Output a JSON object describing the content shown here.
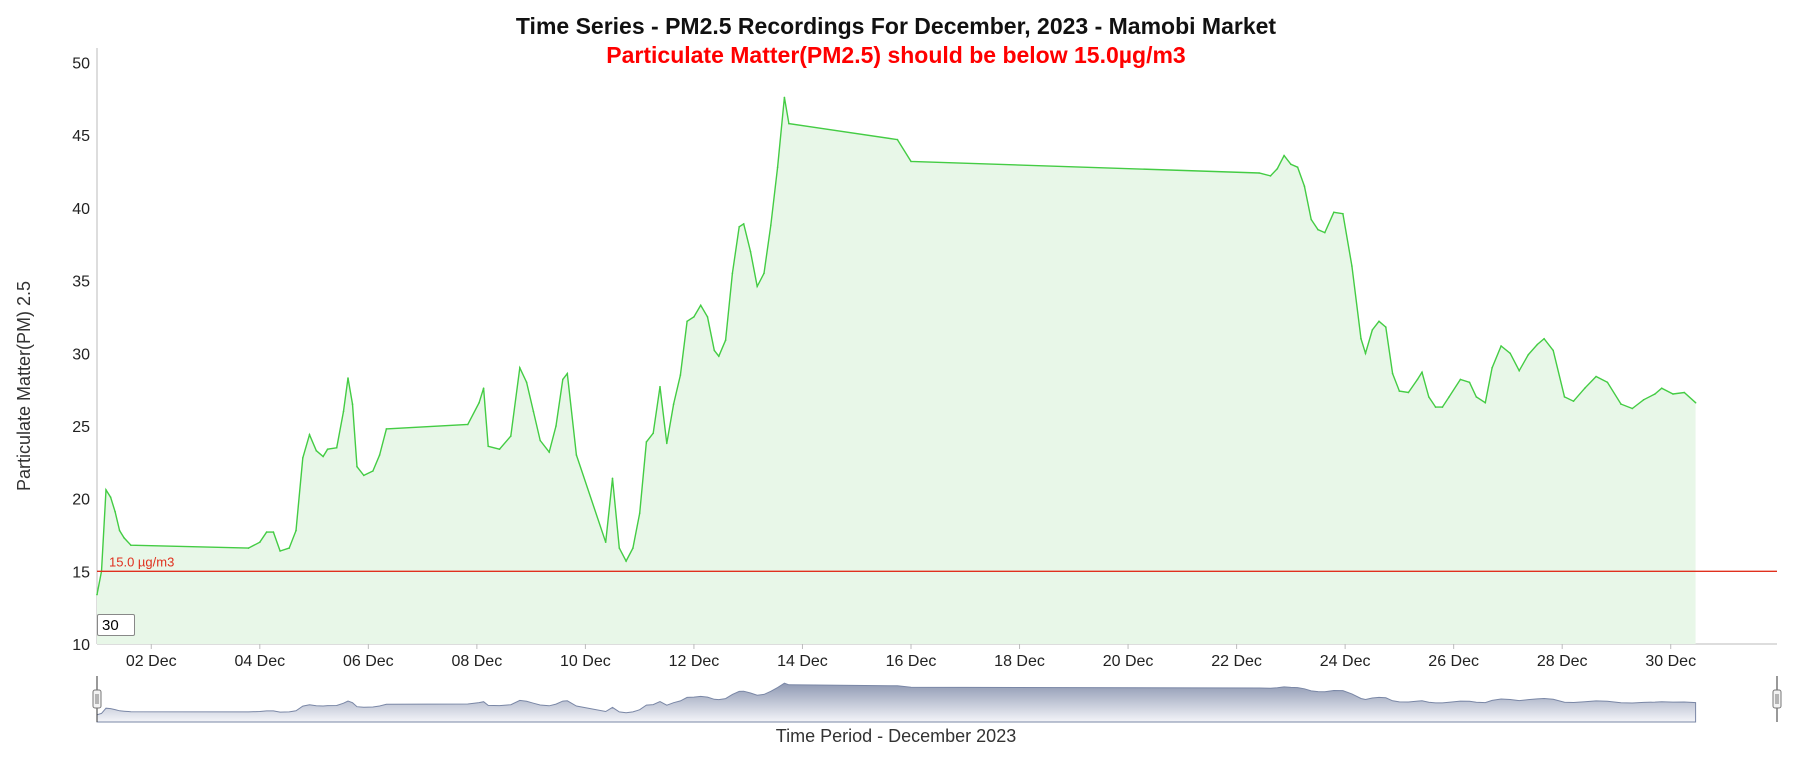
{
  "chart_data": {
    "type": "area",
    "title": "Time Series - PM2.5 Recordings For December, 2023 - Mamobi Market",
    "subtitle": "Particulate Matter(PM2.5) should be below 15.0µg/m3",
    "xlabel": "Time Period - December 2023",
    "ylabel": "Particulate Matter(PM) 2.5",
    "ylim": [
      10,
      51
    ],
    "yticks": [
      "10",
      "15",
      "20",
      "25",
      "30",
      "35",
      "40",
      "45",
      "50"
    ],
    "xlim": [
      "2023-12-01",
      "2023-12-31T23:00"
    ],
    "xticks": [
      {
        "date": "2023-12-02",
        "label": "02 Dec"
      },
      {
        "date": "2023-12-04",
        "label": "04 Dec"
      },
      {
        "date": "2023-12-06",
        "label": "06 Dec"
      },
      {
        "date": "2023-12-08",
        "label": "08 Dec"
      },
      {
        "date": "2023-12-10",
        "label": "10 Dec"
      },
      {
        "date": "2023-12-12",
        "label": "12 Dec"
      },
      {
        "date": "2023-12-14",
        "label": "14 Dec"
      },
      {
        "date": "2023-12-16",
        "label": "16 Dec"
      },
      {
        "date": "2023-12-18",
        "label": "18 Dec"
      },
      {
        "date": "2023-12-20",
        "label": "20 Dec"
      },
      {
        "date": "2023-12-22",
        "label": "22 Dec"
      },
      {
        "date": "2023-12-24",
        "label": "24 Dec"
      },
      {
        "date": "2023-12-26",
        "label": "26 Dec"
      },
      {
        "date": "2023-12-28",
        "label": "28 Dec"
      },
      {
        "date": "2023-12-30",
        "label": "30 Dec"
      }
    ],
    "grid": false,
    "series": [
      {
        "color": "#44cc44",
        "fill": "#e8f7e8",
        "points": [
          [
            "2023-12-01T00:00",
            13.4
          ],
          [
            "2023-12-01T02:00",
            15.0
          ],
          [
            "2023-12-01T04:00",
            20.6
          ],
          [
            "2023-12-01T06:00",
            20.1
          ],
          [
            "2023-12-01T08:00",
            19.1
          ],
          [
            "2023-12-01T10:00",
            17.8
          ],
          [
            "2023-12-01T12:00",
            17.3
          ],
          [
            "2023-12-01T15:00",
            16.8
          ],
          [
            "2023-12-03T19:00",
            16.6
          ],
          [
            "2023-12-04T00:00",
            17.0
          ],
          [
            "2023-12-04T03:00",
            17.7
          ],
          [
            "2023-12-04T06:00",
            17.7
          ],
          [
            "2023-12-04T09:00",
            16.4
          ],
          [
            "2023-12-04T13:00",
            16.6
          ],
          [
            "2023-12-04T16:00",
            17.8
          ],
          [
            "2023-12-04T19:00",
            22.8
          ],
          [
            "2023-12-04T22:00",
            24.4
          ],
          [
            "2023-12-05T01:00",
            23.3
          ],
          [
            "2023-12-05T04:00",
            22.9
          ],
          [
            "2023-12-05T06:00",
            23.4
          ],
          [
            "2023-12-05T10:00",
            23.5
          ],
          [
            "2023-12-05T13:00",
            26.0
          ],
          [
            "2023-12-05T15:00",
            28.3
          ],
          [
            "2023-12-05T17:00",
            26.5
          ],
          [
            "2023-12-05T19:00",
            22.2
          ],
          [
            "2023-12-05T22:00",
            21.6
          ],
          [
            "2023-12-06T02:00",
            21.9
          ],
          [
            "2023-12-06T05:00",
            23.0
          ],
          [
            "2023-12-06T08:00",
            24.8
          ],
          [
            "2023-12-07T20:00",
            25.1
          ],
          [
            "2023-12-08T01:00",
            26.6
          ],
          [
            "2023-12-08T03:00",
            27.6
          ],
          [
            "2023-12-08T05:00",
            23.6
          ],
          [
            "2023-12-08T10:00",
            23.4
          ],
          [
            "2023-12-08T15:00",
            24.3
          ],
          [
            "2023-12-08T19:00",
            29.0
          ],
          [
            "2023-12-08T22:00",
            28.0
          ],
          [
            "2023-12-09T01:00",
            26.0
          ],
          [
            "2023-12-09T04:00",
            24.0
          ],
          [
            "2023-12-09T08:00",
            23.2
          ],
          [
            "2023-12-09T11:00",
            25.0
          ],
          [
            "2023-12-09T14:00",
            28.2
          ],
          [
            "2023-12-09T16:00",
            28.6
          ],
          [
            "2023-12-09T20:00",
            23.0
          ],
          [
            "2023-12-10T09:00",
            17.0
          ],
          [
            "2023-12-10T12:00",
            21.4
          ],
          [
            "2023-12-10T15:00",
            16.6
          ],
          [
            "2023-12-10T18:00",
            15.7
          ],
          [
            "2023-12-10T21:00",
            16.6
          ],
          [
            "2023-12-11T00:00",
            19.0
          ],
          [
            "2023-12-11T03:00",
            23.9
          ],
          [
            "2023-12-11T06:00",
            24.5
          ],
          [
            "2023-12-11T09:00",
            27.7
          ],
          [
            "2023-12-11T12:00",
            23.8
          ],
          [
            "2023-12-11T15:00",
            26.5
          ],
          [
            "2023-12-11T18:00",
            28.5
          ],
          [
            "2023-12-11T21:00",
            32.2
          ],
          [
            "2023-12-12T00:00",
            32.5
          ],
          [
            "2023-12-12T03:00",
            33.3
          ],
          [
            "2023-12-12T06:00",
            32.5
          ],
          [
            "2023-12-12T09:00",
            30.2
          ],
          [
            "2023-12-12T11:00",
            29.8
          ],
          [
            "2023-12-12T14:00",
            30.9
          ],
          [
            "2023-12-12T17:00",
            35.5
          ],
          [
            "2023-12-12T20:00",
            38.7
          ],
          [
            "2023-12-12T22:00",
            38.9
          ],
          [
            "2023-12-13T01:00",
            37.0
          ],
          [
            "2023-12-13T04:00",
            34.6
          ],
          [
            "2023-12-13T07:00",
            35.5
          ],
          [
            "2023-12-13T10:00",
            38.8
          ],
          [
            "2023-12-13T13:00",
            42.8
          ],
          [
            "2023-12-13T16:00",
            47.6
          ],
          [
            "2023-12-13T18:00",
            45.8
          ],
          [
            "2023-12-15T18:00",
            44.7
          ],
          [
            "2023-12-16T00:00",
            43.2
          ],
          [
            "2023-12-22T10:00",
            42.4
          ],
          [
            "2023-12-22T15:00",
            42.2
          ],
          [
            "2023-12-22T18:00",
            42.7
          ],
          [
            "2023-12-22T21:00",
            43.6
          ],
          [
            "2023-12-23T00:00",
            43.0
          ],
          [
            "2023-12-23T03:00",
            42.8
          ],
          [
            "2023-12-23T06:00",
            41.5
          ],
          [
            "2023-12-23T09:00",
            39.2
          ],
          [
            "2023-12-23T12:00",
            38.5
          ],
          [
            "2023-12-23T15:00",
            38.3
          ],
          [
            "2023-12-23T19:00",
            39.7
          ],
          [
            "2023-12-23T23:00",
            39.6
          ],
          [
            "2023-12-24T03:00",
            36.0
          ],
          [
            "2023-12-24T07:00",
            31.0
          ],
          [
            "2023-12-24T09:00",
            30.0
          ],
          [
            "2023-12-24T12:00",
            31.6
          ],
          [
            "2023-12-24T15:00",
            32.2
          ],
          [
            "2023-12-24T18:00",
            31.8
          ],
          [
            "2023-12-24T21:00",
            28.6
          ],
          [
            "2023-12-25T00:00",
            27.4
          ],
          [
            "2023-12-25T04:00",
            27.3
          ],
          [
            "2023-12-25T08:00",
            28.2
          ],
          [
            "2023-12-25T10:00",
            28.7
          ],
          [
            "2023-12-25T13:00",
            27.0
          ],
          [
            "2023-12-25T16:00",
            26.3
          ],
          [
            "2023-12-25T19:00",
            26.3
          ],
          [
            "2023-12-25T22:00",
            27.0
          ],
          [
            "2023-12-26T03:00",
            28.2
          ],
          [
            "2023-12-26T07:00",
            28.0
          ],
          [
            "2023-12-26T10:00",
            27.0
          ],
          [
            "2023-12-26T14:00",
            26.6
          ],
          [
            "2023-12-26T17:00",
            29.0
          ],
          [
            "2023-12-26T21:00",
            30.5
          ],
          [
            "2023-12-27T01:00",
            30.0
          ],
          [
            "2023-12-27T05:00",
            28.8
          ],
          [
            "2023-12-27T09:00",
            29.9
          ],
          [
            "2023-12-27T13:00",
            30.6
          ],
          [
            "2023-12-27T16:00",
            31.0
          ],
          [
            "2023-12-27T20:00",
            30.2
          ],
          [
            "2023-12-28T01:00",
            27.0
          ],
          [
            "2023-12-28T05:00",
            26.7
          ],
          [
            "2023-12-28T10:00",
            27.6
          ],
          [
            "2023-12-28T15:00",
            28.4
          ],
          [
            "2023-12-28T20:00",
            28.0
          ],
          [
            "2023-12-29T02:00",
            26.5
          ],
          [
            "2023-12-29T07:00",
            26.2
          ],
          [
            "2023-12-29T12:00",
            26.8
          ],
          [
            "2023-12-29T17:00",
            27.2
          ],
          [
            "2023-12-29T20:00",
            27.6
          ],
          [
            "2023-12-30T01:00",
            27.2
          ],
          [
            "2023-12-30T06:00",
            27.3
          ],
          [
            "2023-12-30T11:00",
            26.6
          ]
        ]
      }
    ],
    "threshold": {
      "value": 15.0,
      "label": "15.0 µg/m3",
      "color": "#e0301e"
    },
    "rolling_window": "30",
    "navigator": {
      "fill_top": "#8f99b3",
      "fill_bottom": "#f4f5f9",
      "line": "#7a87a6",
      "handles": "start-and-end"
    }
  }
}
